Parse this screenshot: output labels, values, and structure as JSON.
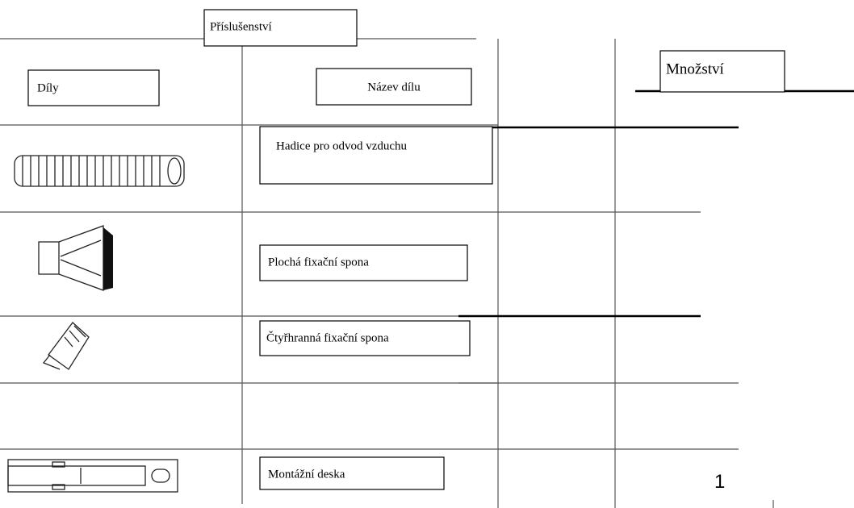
{
  "header": {
    "title": "Příslušenství"
  },
  "table": {
    "headers": [
      "Díly",
      "Název dílu",
      "Množství"
    ],
    "rows": [
      {
        "name": "Hadice pro odvod vzduchu"
      },
      {
        "name": "Plochá fixační spona"
      },
      {
        "name": "Čtyřhranná fixační spona"
      },
      {
        "name": "Montážní deska",
        "quantity": "1"
      }
    ]
  }
}
